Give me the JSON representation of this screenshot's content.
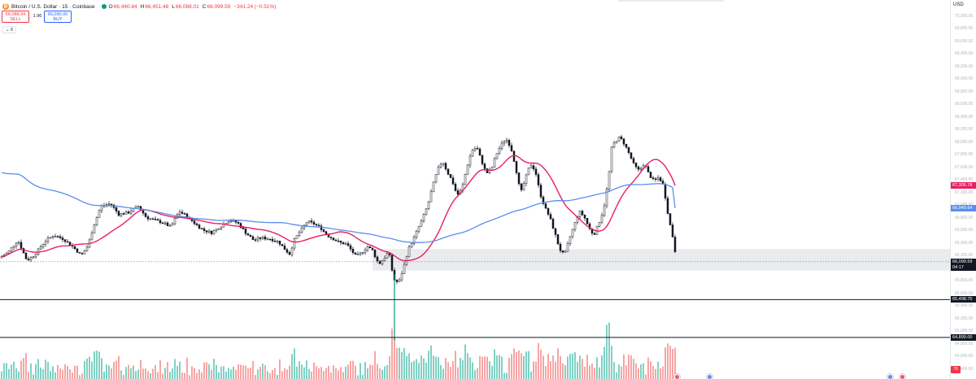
{
  "header": {
    "title": "Bitcoin / U.S. Dollar · 15 · Coinbase",
    "ohlc": [
      {
        "label": "O",
        "value": "66,440.84"
      },
      {
        "label": "H",
        "value": "66,451.48"
      },
      {
        "label": "L",
        "value": "66,088.01"
      },
      {
        "label": "C",
        "value": "66,099.59"
      }
    ],
    "change": "−341.24 (−0.51%)",
    "sell_price": "66,088.04",
    "sell_label": "SELL",
    "buy_price": "66,090.00",
    "buy_label": "BUY",
    "spread": "1.96",
    "indicators_count": "6"
  },
  "price_scale": {
    "currency": "USD",
    "ticks": [
      "70,000.00",
      "69,800.00",
      "69,600.00",
      "69,400.00",
      "69,200.00",
      "69,000.00",
      "68,800.00",
      "68,600.00",
      "68,400.00",
      "68,200.00",
      "68,000.00",
      "67,800.00",
      "67,600.00",
      "67,400.00",
      "67,200.00",
      "67,000.00",
      "66,800.00",
      "66,600.00",
      "66,400.00",
      "66,200.00",
      "66,000.00",
      "65,800.00",
      "65,600.00",
      "65,400.00",
      "65,200.00",
      "65,000.00",
      "64,800.00",
      "64,600.00",
      "64,400.00"
    ],
    "tags": {
      "ma_red": "67,305.78",
      "ma_blue": "66,949.64",
      "last": "66,099.59",
      "countdown": "04:17",
      "level_1": "65,498.75",
      "level_2": "64,899.00"
    },
    "volume_marker": "76"
  },
  "colors": {
    "up": "#089981",
    "down": "#f23645",
    "candle_body": "#131722",
    "ma_fast": "#e91e63",
    "ma_slow": "#5b8def",
    "vol_up": "#7fd1c4",
    "vol_down": "#f7a5a5",
    "zone": "#e6e7ea"
  },
  "chart_data": {
    "type": "candlestick",
    "symbol": "BTCUSD",
    "interval": "15",
    "y_range": [
      64400,
      70000
    ],
    "last_close": 66099.59,
    "horizontal_levels": [
      65498.75,
      64899.0
    ],
    "zone": {
      "from": 65960,
      "to": 66300
    },
    "ma_fast_last": 67305.78,
    "ma_slow_last": 66949.64,
    "anchors": [
      [
        0,
        66160
      ],
      [
        10,
        66250
      ],
      [
        22,
        66440
      ],
      [
        33,
        66120
      ],
      [
        42,
        66200
      ],
      [
        55,
        66420
      ],
      [
        66,
        66520
      ],
      [
        78,
        66460
      ],
      [
        90,
        66330
      ],
      [
        100,
        66200
      ],
      [
        108,
        66350
      ],
      [
        116,
        66700
      ],
      [
        124,
        66980
      ],
      [
        136,
        67020
      ],
      [
        146,
        66850
      ],
      [
        158,
        66880
      ],
      [
        170,
        66980
      ],
      [
        180,
        66800
      ],
      [
        190,
        66760
      ],
      [
        200,
        66720
      ],
      [
        210,
        66650
      ],
      [
        220,
        66900
      ],
      [
        230,
        66820
      ],
      [
        240,
        66700
      ],
      [
        250,
        66600
      ],
      [
        260,
        66560
      ],
      [
        270,
        66650
      ],
      [
        282,
        66760
      ],
      [
        292,
        66720
      ],
      [
        302,
        66560
      ],
      [
        312,
        66440
      ],
      [
        322,
        66480
      ],
      [
        332,
        66460
      ],
      [
        342,
        66420
      ],
      [
        350,
        66300
      ],
      [
        356,
        66220
      ],
      [
        362,
        66450
      ],
      [
        370,
        66600
      ],
      [
        378,
        66740
      ],
      [
        386,
        66700
      ],
      [
        394,
        66640
      ],
      [
        402,
        66520
      ],
      [
        410,
        66460
      ],
      [
        418,
        66400
      ],
      [
        426,
        66380
      ],
      [
        432,
        66280
      ],
      [
        438,
        66180
      ],
      [
        446,
        66260
      ],
      [
        452,
        66340
      ],
      [
        458,
        66280
      ],
      [
        462,
        66160
      ],
      [
        466,
        66060
      ],
      [
        472,
        66150
      ],
      [
        478,
        66260
      ],
      [
        484,
        65820
      ],
      [
        490,
        65760
      ],
      [
        496,
        66000
      ],
      [
        502,
        66300
      ],
      [
        508,
        66450
      ],
      [
        514,
        66630
      ],
      [
        520,
        66800
      ],
      [
        526,
        67000
      ],
      [
        532,
        67300
      ],
      [
        538,
        67560
      ],
      [
        544,
        67700
      ],
      [
        550,
        67520
      ],
      [
        556,
        67380
      ],
      [
        562,
        67150
      ],
      [
        568,
        67260
      ],
      [
        574,
        67600
      ],
      [
        580,
        67860
      ],
      [
        586,
        67920
      ],
      [
        592,
        67700
      ],
      [
        598,
        67500
      ],
      [
        604,
        67560
      ],
      [
        610,
        67800
      ],
      [
        616,
        67950
      ],
      [
        622,
        68050
      ],
      [
        628,
        67920
      ],
      [
        634,
        67600
      ],
      [
        640,
        67180
      ],
      [
        646,
        67420
      ],
      [
        652,
        67650
      ],
      [
        658,
        67550
      ],
      [
        664,
        67180
      ],
      [
        670,
        66960
      ],
      [
        676,
        66800
      ],
      [
        682,
        66560
      ],
      [
        688,
        66300
      ],
      [
        694,
        66200
      ],
      [
        700,
        66460
      ],
      [
        706,
        66680
      ],
      [
        712,
        66900
      ],
      [
        718,
        66820
      ],
      [
        724,
        66640
      ],
      [
        730,
        66520
      ],
      [
        736,
        66700
      ],
      [
        742,
        66920
      ],
      [
        748,
        67400
      ],
      [
        752,
        67900
      ],
      [
        756,
        68000
      ],
      [
        762,
        68080
      ],
      [
        768,
        67960
      ],
      [
        774,
        67800
      ],
      [
        780,
        67620
      ],
      [
        786,
        67540
      ],
      [
        792,
        67660
      ],
      [
        798,
        67480
      ],
      [
        804,
        67380
      ],
      [
        810,
        67440
      ],
      [
        816,
        67300
      ],
      [
        820,
        66950
      ],
      [
        824,
        66680
      ],
      [
        828,
        66440
      ],
      [
        832,
        66100
      ]
    ]
  }
}
